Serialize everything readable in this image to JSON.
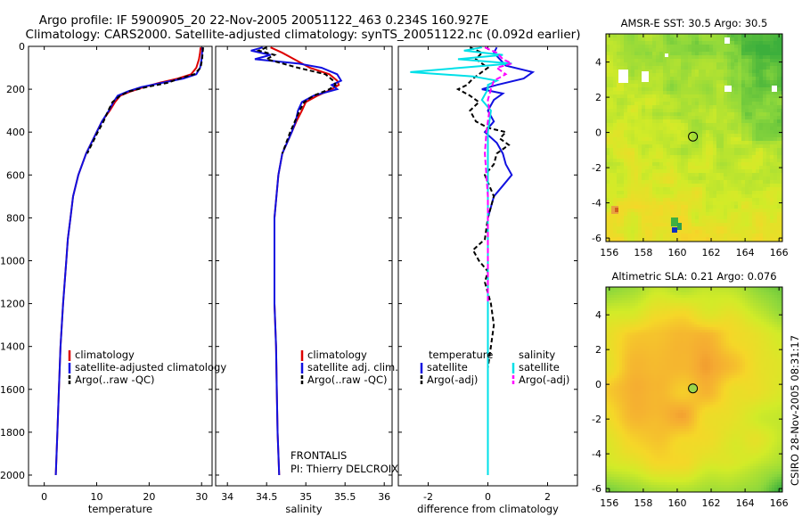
{
  "title": {
    "line1": "Argo profile: IF 5900905_20 22-Nov-2005 20051122_463 0.234S 160.927E",
    "line2": "Climatology: CARS2000. Satellite-adjusted climatology: synTS_20051122.nc (0.092d earlier)"
  },
  "credit": "CSIRO 28-Nov-2005 08:31:17",
  "annotations": {
    "frontalis": "FRONTALIS",
    "pi": "PI: Thierry DELCROIX"
  },
  "colors": {
    "climatology": "#dd0000",
    "satellite": "#1010e0",
    "argo": "#000000",
    "salinity_satellite": "#00e0e8",
    "salinity_argo": "#ff00ff"
  },
  "chart_data": [
    {
      "type": "line",
      "id": "temperature",
      "xlabel": "temperature",
      "ylabel": "",
      "xlim": [
        -3,
        32
      ],
      "ylim": [
        2050,
        0
      ],
      "x_ticks": [
        0,
        10,
        20,
        30
      ],
      "y_ticks": [
        0,
        200,
        400,
        600,
        800,
        1000,
        1200,
        1400,
        1600,
        1800,
        2000
      ],
      "legend": [
        "climatology",
        "satellite-adjusted climatology",
        "Argo(..raw -QC)"
      ],
      "series": [
        {
          "name": "climatology",
          "color": "#dd0000",
          "dash": "",
          "y": [
            5,
            30,
            60,
            100,
            130,
            150,
            170,
            190,
            210,
            230,
            260,
            300,
            350,
            400,
            500,
            600,
            700,
            800,
            900,
            1000,
            1200,
            1400,
            1600,
            1800,
            2000
          ],
          "x": [
            29.8,
            29.7,
            29.5,
            29.0,
            28.0,
            25.5,
            22.0,
            19.0,
            16.5,
            14.5,
            13.5,
            12.5,
            11.0,
            10.0,
            8.0,
            6.5,
            5.5,
            5.0,
            4.5,
            4.2,
            3.6,
            3.1,
            2.8,
            2.5,
            2.2
          ]
        },
        {
          "name": "satellite-adjusted climatology",
          "color": "#1010e0",
          "dash": "",
          "y": [
            5,
            30,
            60,
            100,
            130,
            150,
            170,
            190,
            210,
            230,
            260,
            300,
            350,
            400,
            500,
            600,
            700,
            800,
            900,
            1000,
            1200,
            1400,
            1600,
            1800,
            2000
          ],
          "x": [
            30.2,
            30.1,
            30.0,
            29.7,
            29.0,
            26.5,
            22.5,
            18.5,
            16.0,
            14.0,
            13.2,
            12.3,
            11.0,
            10.0,
            8.0,
            6.5,
            5.5,
            5.0,
            4.5,
            4.2,
            3.6,
            3.1,
            2.8,
            2.5,
            2.2
          ]
        },
        {
          "name": "Argo(..raw -QC)",
          "color": "#000000",
          "dash": "5,3",
          "y": [
            5,
            30,
            60,
            100,
            130,
            150,
            170,
            190,
            210,
            230,
            260,
            300,
            350,
            400,
            500
          ],
          "x": [
            30.3,
            30.2,
            30.1,
            29.8,
            28.6,
            25.8,
            23.5,
            19.5,
            16.2,
            14.5,
            13.0,
            12.2,
            11.3,
            10.2,
            8.2
          ]
        }
      ]
    },
    {
      "type": "line",
      "id": "salinity",
      "xlabel": "salinity",
      "ylabel": "",
      "xlim": [
        33.85,
        36.1
      ],
      "ylim": [
        2050,
        0
      ],
      "x_ticks": [
        34,
        34.5,
        35,
        35.5,
        36
      ],
      "legend": [
        "climatology",
        "satellite adj. clim.",
        "Argo(..raw -QC)"
      ],
      "series": [
        {
          "name": "climatology",
          "color": "#dd0000",
          "dash": "",
          "y": [
            5,
            30,
            60,
            100,
            130,
            160,
            180,
            200,
            230,
            260,
            300,
            350,
            400,
            500,
            600,
            800,
            1000,
            1200,
            1400,
            1600,
            1800,
            2000
          ],
          "x": [
            34.55,
            34.7,
            34.85,
            35.05,
            35.3,
            35.4,
            35.42,
            35.33,
            35.15,
            35.0,
            34.95,
            34.88,
            34.82,
            34.7,
            34.65,
            34.6,
            34.6,
            34.6,
            34.62,
            34.63,
            34.64,
            34.66
          ]
        },
        {
          "name": "satellite adj. clim.",
          "color": "#1010e0",
          "dash": "",
          "y": [
            5,
            20,
            40,
            60,
            80,
            100,
            130,
            160,
            180,
            200,
            230,
            260,
            300,
            350,
            400,
            500,
            600,
            800,
            1000,
            1200,
            1400,
            1600,
            1800,
            2000
          ],
          "x": [
            34.45,
            34.3,
            34.55,
            34.35,
            34.9,
            35.2,
            35.4,
            35.45,
            35.33,
            35.4,
            35.1,
            34.95,
            34.9,
            34.87,
            34.82,
            34.7,
            34.65,
            34.6,
            34.6,
            34.6,
            34.62,
            34.63,
            34.64,
            34.66
          ]
        },
        {
          "name": "Argo(..raw -QC)",
          "color": "#000000",
          "dash": "5,3",
          "y": [
            5,
            20,
            40,
            60,
            100,
            130,
            160,
            180,
            200,
            230,
            260,
            300,
            350,
            400,
            500
          ],
          "x": [
            34.5,
            34.4,
            34.6,
            34.5,
            34.9,
            35.25,
            35.35,
            35.38,
            35.3,
            35.1,
            34.98,
            34.92,
            34.86,
            34.8,
            34.7
          ]
        }
      ]
    },
    {
      "type": "line",
      "id": "difference",
      "xlabel": "difference from climatology",
      "ylabel": "",
      "xlim": [
        -3.0,
        3.0
      ],
      "ylim": [
        2050,
        0
      ],
      "x_ticks": [
        -2,
        0,
        2
      ],
      "legend": [
        "temperature",
        "satellite",
        "Argo(-adj)",
        "salinity",
        "satellite",
        "Argo(-adj)"
      ],
      "series": [
        {
          "name": "temperature satellite",
          "color": "#1010e0",
          "dash": "",
          "y": [
            5,
            30,
            60,
            90,
            120,
            150,
            180,
            200,
            220,
            250,
            300,
            350,
            400,
            450,
            500,
            550,
            600,
            650,
            700,
            750,
            800,
            900,
            1000,
            1200,
            1400,
            1600,
            1800,
            2000
          ],
          "x": [
            0.3,
            0.2,
            0.4,
            0.6,
            1.5,
            1.2,
            0.3,
            -0.2,
            0.5,
            0.2,
            0.0,
            0.2,
            -0.1,
            0.3,
            0.5,
            0.6,
            0.8,
            0.5,
            0.2,
            0.1,
            0.0,
            0.0,
            0.0,
            0.0,
            0.0,
            0.0,
            0.0,
            0.0
          ]
        },
        {
          "name": "temperature Argo(-adj)",
          "color": "#000000",
          "dash": "5,3",
          "y": [
            5,
            30,
            60,
            100,
            150,
            180,
            200,
            230,
            260,
            300,
            350,
            380,
            400,
            430,
            460,
            500,
            550,
            600,
            700,
            800,
            900,
            950,
            1000,
            1050,
            1100,
            1200,
            1300,
            1400,
            1500
          ],
          "x": [
            -0.6,
            -0.2,
            -0.4,
            0.0,
            -0.5,
            -0.7,
            -1.0,
            -0.6,
            -0.3,
            -0.6,
            -0.4,
            0.0,
            0.6,
            0.4,
            0.7,
            0.3,
            0.2,
            -0.1,
            0.2,
            0.0,
            -0.1,
            -0.5,
            -0.3,
            0.0,
            -0.1,
            0.1,
            0.2,
            0.1,
            0.0
          ]
        },
        {
          "name": "salinity satellite",
          "color": "#00e0e8",
          "dash": "",
          "y": [
            5,
            20,
            40,
            60,
            80,
            100,
            120,
            140,
            160,
            180,
            200,
            250,
            300,
            400,
            600,
            800,
            1000,
            1200,
            1400,
            1600,
            1800,
            2000
          ],
          "x": [
            -0.2,
            -0.8,
            0.5,
            -1.0,
            0.8,
            -0.9,
            -2.6,
            -0.5,
            0.3,
            0.0,
            0.0,
            -0.2,
            0.1,
            0.0,
            0.0,
            0.0,
            0.0,
            0.0,
            0.0,
            0.0,
            0.0,
            0.0
          ]
        },
        {
          "name": "salinity Argo(-adj)",
          "color": "#ff00ff",
          "dash": "6,3",
          "y": [
            5,
            30,
            60,
            80,
            100,
            130,
            160,
            200,
            250,
            300,
            400,
            500,
            600,
            700,
            800,
            1000,
            1200
          ],
          "x": [
            -0.1,
            0.3,
            0.5,
            0.8,
            0.3,
            0.6,
            0.2,
            0.1,
            0.0,
            0.05,
            -0.05,
            -0.1,
            -0.05,
            0.0,
            0.0,
            0.0,
            0.0
          ]
        }
      ]
    },
    {
      "type": "heatmap",
      "id": "sst_map",
      "title": "AMSR-E SST: 30.5 Argo: 30.5",
      "xlim": [
        155.8,
        166.2
      ],
      "ylim": [
        -6.2,
        5.6
      ],
      "x_ticks": [
        156,
        158,
        160,
        162,
        164,
        166
      ],
      "y_ticks": [
        -6,
        -4,
        -2,
        0,
        2,
        4
      ],
      "marker": {
        "lon": 160.927,
        "lat": -0.234,
        "color": "#ffffff"
      }
    },
    {
      "type": "heatmap",
      "id": "sla_map",
      "title": "Altimetric SLA: 0.21 Argo: 0.076",
      "xlim": [
        155.8,
        166.2
      ],
      "ylim": [
        -6.2,
        5.6
      ],
      "x_ticks": [
        156,
        158,
        160,
        162,
        164,
        166
      ],
      "y_ticks": [
        -6,
        -4,
        -2,
        0,
        2,
        4
      ],
      "marker": {
        "lon": 160.927,
        "lat": -0.234,
        "color": "#9ad64a"
      }
    }
  ]
}
